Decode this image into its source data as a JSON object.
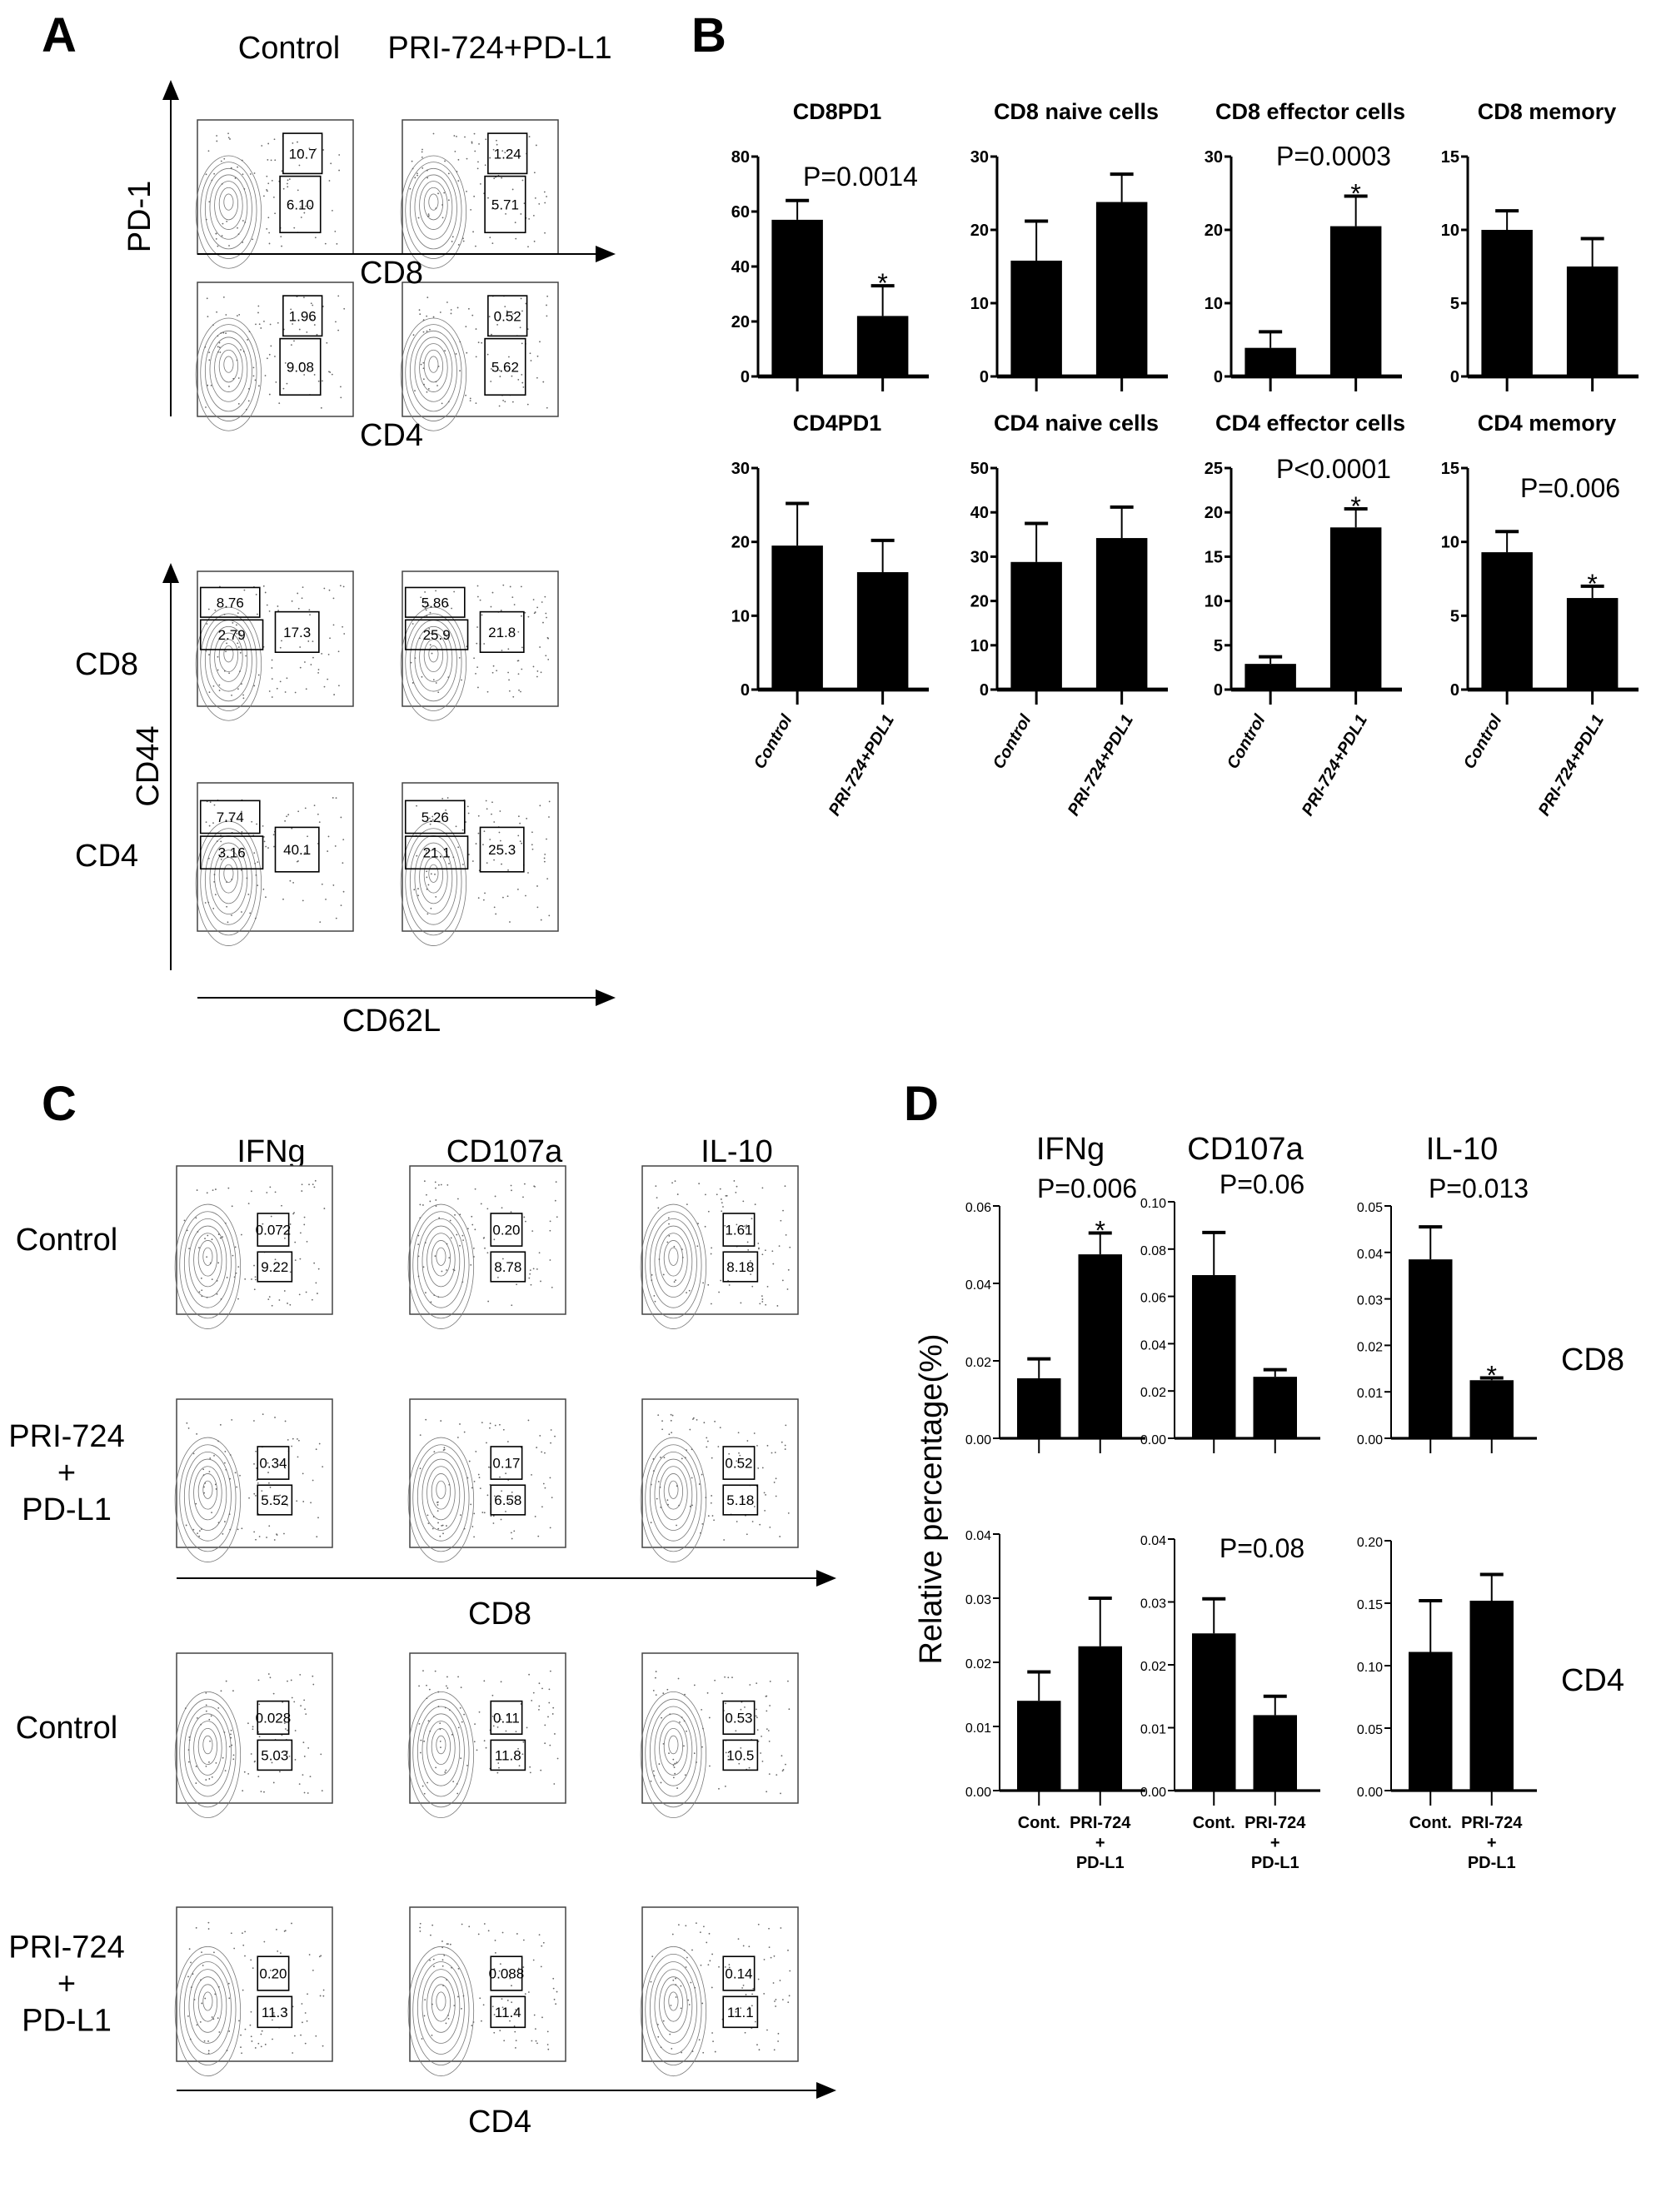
{
  "panel_a": {
    "label": "A",
    "columns": [
      "Control",
      "PRI-724+PD-L1"
    ],
    "axis_pd1": "PD-1",
    "axis_cd8": "CD8",
    "axis_cd4": "CD4",
    "axis_cd44": "CD44",
    "axis_cd62l": "CD62L",
    "row_labels": [
      "CD8",
      "CD4"
    ],
    "gates": [
      [
        [
          "10.7",
          "6.10"
        ],
        [
          "1.24",
          "5.71"
        ]
      ],
      [
        [
          "1.96",
          "9.08"
        ],
        [
          "0.52",
          "5.62"
        ]
      ],
      [
        [
          "8.76",
          "2.79",
          "17.3"
        ],
        [
          "5.86",
          "25.9",
          "21.8"
        ]
      ],
      [
        [
          "7.74",
          "3.16",
          "40.1"
        ],
        [
          "5.26",
          "21.1",
          "25.3"
        ]
      ]
    ]
  },
  "panel_c": {
    "label": "C",
    "columns": [
      "IFNg",
      "CD107a",
      "IL-10"
    ],
    "row_labels": [
      [
        "Control"
      ],
      [
        "PRI-724",
        "+",
        "PD-L1"
      ],
      [
        "Control"
      ],
      [
        "PRI-724",
        "+",
        "PD-L1"
      ]
    ],
    "axis_cd8": "CD8",
    "axis_cd4": "CD4",
    "gates": [
      [
        [
          "0.072",
          "9.22"
        ],
        [
          "0.20",
          "8.78"
        ],
        [
          "1.61",
          "8.18"
        ]
      ],
      [
        [
          "0.34",
          "5.52"
        ],
        [
          "0.17",
          "6.58"
        ],
        [
          "0.52",
          "5.18"
        ]
      ],
      [
        [
          "0.028",
          "5.03"
        ],
        [
          "0.11",
          "11.8"
        ],
        [
          "0.53",
          "10.5"
        ]
      ],
      [
        [
          "0.20",
          "11.3"
        ],
        [
          "0.088",
          "11.4"
        ],
        [
          "0.14",
          "11.1"
        ]
      ]
    ]
  },
  "chart_data": [
    {
      "panel": "B",
      "type": "bar",
      "categories": [
        "Control",
        "PRI-724+PDL1"
      ],
      "bar_color": "#000000",
      "charts": [
        {
          "title": "CD8PD1",
          "ylim": [
            0,
            80
          ],
          "ticks": [
            "0",
            "20",
            "40",
            "60",
            "80"
          ],
          "values": [
            57,
            22
          ],
          "errors": [
            7,
            11
          ],
          "p": "P=0.0014",
          "star": [
            false,
            true
          ]
        },
        {
          "title": "CD8 naive cells",
          "ylim": [
            0,
            30
          ],
          "ticks": [
            "0",
            "10",
            "20",
            "30"
          ],
          "values": [
            15.8,
            23.8
          ],
          "errors": [
            5.4,
            3.8
          ],
          "p": "",
          "star": [
            false,
            false
          ]
        },
        {
          "title": "CD8 effector cells",
          "ylim": [
            0,
            30
          ],
          "ticks": [
            "0",
            "10",
            "20",
            "30"
          ],
          "values": [
            3.9,
            20.5
          ],
          "errors": [
            2.2,
            4.1
          ],
          "p": "P=0.0003",
          "star": [
            false,
            true
          ]
        },
        {
          "title": "CD8 memory",
          "ylim": [
            0,
            15
          ],
          "ticks": [
            "0",
            "5",
            "10",
            "15"
          ],
          "values": [
            10,
            7.5
          ],
          "errors": [
            1.3,
            1.9
          ],
          "p": "",
          "star": [
            false,
            false
          ]
        },
        {
          "title": "CD4PD1",
          "ylim": [
            0,
            30
          ],
          "ticks": [
            "0",
            "10",
            "20",
            "30"
          ],
          "values": [
            19.5,
            15.9
          ],
          "errors": [
            5.7,
            4.3
          ],
          "p": "",
          "star": [
            false,
            false
          ]
        },
        {
          "title": "CD4 naive cells",
          "ylim": [
            0,
            50
          ],
          "ticks": [
            "0",
            "10",
            "20",
            "30",
            "40",
            "50"
          ],
          "values": [
            28.8,
            34.2
          ],
          "errors": [
            8.7,
            7.0
          ],
          "p": "",
          "star": [
            false,
            false
          ]
        },
        {
          "title": "CD4 effector cells",
          "ylim": [
            0,
            25
          ],
          "ticks": [
            "0",
            "5",
            "10",
            "15",
            "20",
            "25"
          ],
          "values": [
            2.9,
            18.3
          ],
          "errors": [
            0.8,
            2.1
          ],
          "p": "P<0.0001",
          "star": [
            false,
            true
          ]
        },
        {
          "title": "CD4 memory",
          "ylim": [
            0,
            15
          ],
          "ticks": [
            "0",
            "5",
            "10",
            "15"
          ],
          "values": [
            9.3,
            6.2
          ],
          "errors": [
            1.4,
            0.8
          ],
          "p": "P=0.006",
          "star": [
            false,
            true
          ]
        }
      ]
    },
    {
      "panel": "D",
      "type": "bar",
      "columns": [
        "IFNg",
        "CD107a",
        "IL-10"
      ],
      "row_labels": [
        "CD8",
        "CD4"
      ],
      "ylabel": "Relative percentage(%)",
      "categories": [
        [
          "Cont."
        ],
        [
          "PRI-724",
          "+",
          "PD-L1"
        ]
      ],
      "bar_color": "#000000",
      "charts": [
        {
          "ylim": [
            0,
            0.06
          ],
          "ticks": [
            "0.00",
            "0.02",
            "0.04",
            "0.06"
          ],
          "values": [
            0.0155,
            0.0475
          ],
          "errors": [
            0.005,
            0.0055
          ],
          "p": "P=0.006",
          "star": [
            false,
            true
          ]
        },
        {
          "ylim": [
            0,
            0.1
          ],
          "ticks": [
            "0.00",
            "0.02",
            "0.04",
            "0.06",
            "0.08",
            "0.10"
          ],
          "values": [
            0.069,
            0.026
          ],
          "errors": [
            0.018,
            0.003
          ],
          "p": "P=0.06",
          "star": [
            false,
            false
          ]
        },
        {
          "ylim": [
            0,
            0.05
          ],
          "ticks": [
            "0.00",
            "0.01",
            "0.02",
            "0.03",
            "0.04",
            "0.05"
          ],
          "values": [
            0.0385,
            0.0125
          ],
          "errors": [
            0.007,
            0.0005
          ],
          "p": "P=0.013",
          "star": [
            false,
            true
          ]
        },
        {
          "ylim": [
            0,
            0.04
          ],
          "ticks": [
            "0.00",
            "0.01",
            "0.02",
            "0.03",
            "0.04"
          ],
          "values": [
            0.014,
            0.0225
          ],
          "errors": [
            0.0045,
            0.0075
          ],
          "p": "",
          "star": [
            false,
            false
          ]
        },
        {
          "ylim": [
            0,
            0.04
          ],
          "ticks": [
            "0.00",
            "0.01",
            "0.02",
            "0.03",
            "0.04"
          ],
          "values": [
            0.025,
            0.012
          ],
          "errors": [
            0.0055,
            0.003
          ],
          "p": "P=0.08",
          "star": [
            false,
            false
          ]
        },
        {
          "ylim": [
            0,
            0.2
          ],
          "ticks": [
            "0.00",
            "0.05",
            "0.10",
            "0.15",
            "0.20"
          ],
          "values": [
            0.111,
            0.152
          ],
          "errors": [
            0.041,
            0.021
          ],
          "p": "",
          "star": [
            false,
            false
          ]
        }
      ]
    }
  ],
  "labels": {
    "panel_b": "B",
    "panel_d": "D",
    "star": "*"
  }
}
